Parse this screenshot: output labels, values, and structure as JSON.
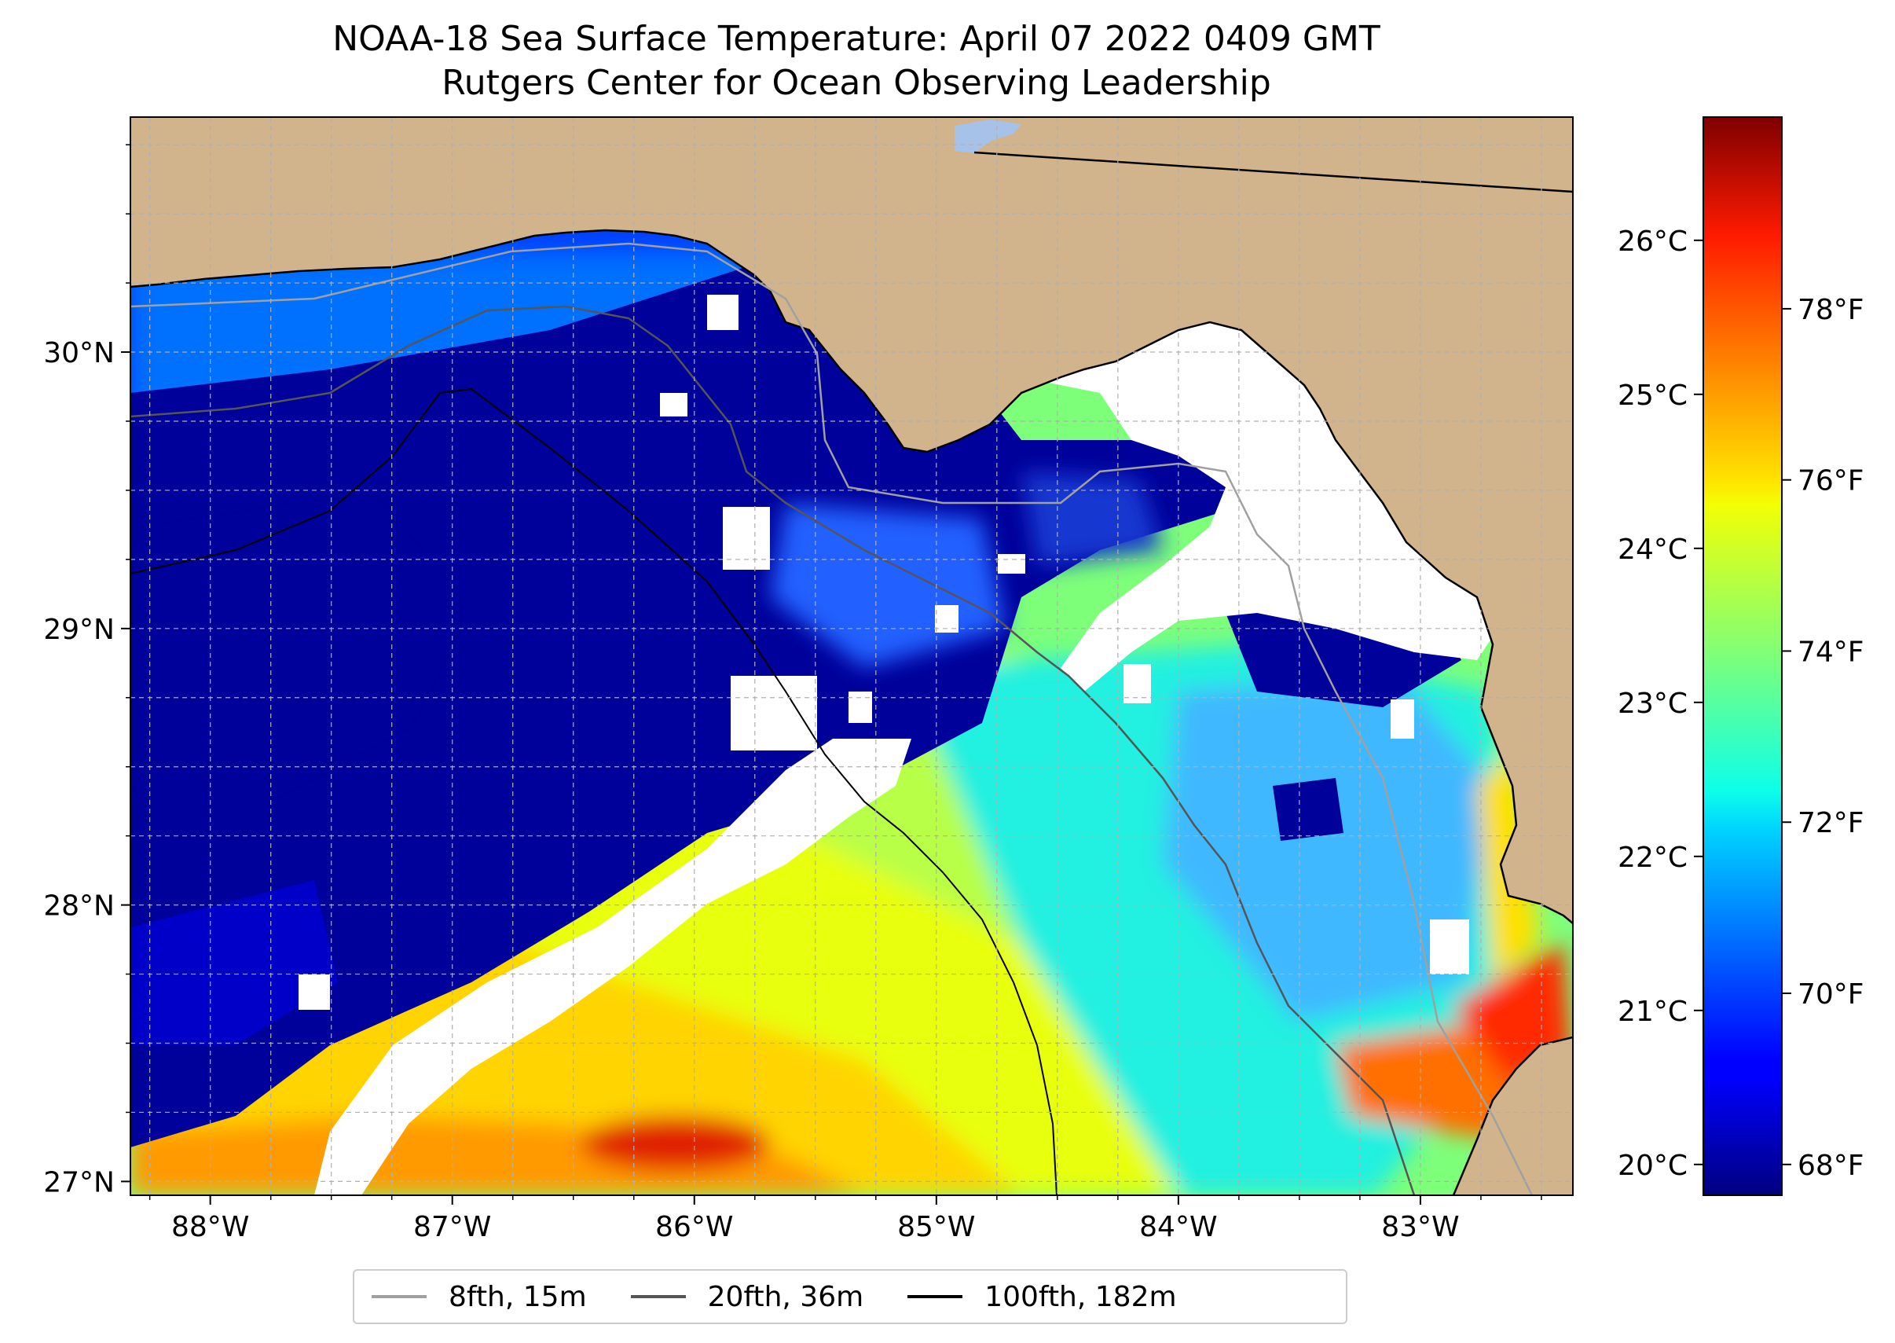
{
  "title": "NOAA-18 Sea Surface Temperature: April 07 2022 0409 GMT",
  "subtitle": "Rutgers Center for Ocean Observing Leadership",
  "map": {
    "lon_range": [
      -88.33,
      -82.37
    ],
    "lat_range": [
      26.95,
      30.85
    ],
    "lon_ticks": [
      {
        "value": -88,
        "label": "88°W"
      },
      {
        "value": -87,
        "label": "87°W"
      },
      {
        "value": -86,
        "label": "86°W"
      },
      {
        "value": -85,
        "label": "85°W"
      },
      {
        "value": -84,
        "label": "84°W"
      },
      {
        "value": -83,
        "label": "83°W"
      }
    ],
    "lat_ticks": [
      {
        "value": 27,
        "label": "27°N"
      },
      {
        "value": 28,
        "label": "28°N"
      },
      {
        "value": 29,
        "label": "29°N"
      },
      {
        "value": 30,
        "label": "30°N"
      }
    ],
    "grid": true,
    "land_color": "#d2b48c",
    "cloud_color": "#ffffff"
  },
  "colorbar": {
    "colormap": "jet",
    "celsius_range": [
      19.8,
      26.8
    ],
    "celsius_ticks": [
      "20°C",
      "21°C",
      "22°C",
      "23°C",
      "24°C",
      "25°C",
      "26°C"
    ],
    "fahrenheit_ticks": [
      "68°F",
      "70°F",
      "72°F",
      "74°F",
      "76°F",
      "78°F"
    ]
  },
  "legend": {
    "placement": "bottom-center",
    "items": [
      {
        "label": "8fth, 15m",
        "color": "#a0a0a0"
      },
      {
        "label": "20fth, 36m",
        "color": "#555555"
      },
      {
        "label": "100fth, 182m",
        "color": "#000000"
      }
    ]
  }
}
